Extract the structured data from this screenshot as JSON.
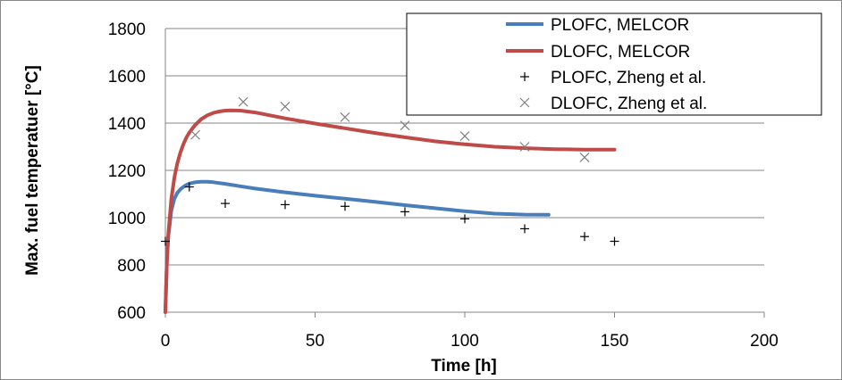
{
  "chart_data": {
    "type": "line",
    "title": "",
    "xlabel": "Time [h]",
    "ylabel": "Max. fuel temperatuer [°C]",
    "xlim": [
      0,
      200
    ],
    "ylim": [
      600,
      1800
    ],
    "xticks": [
      0,
      50,
      100,
      150,
      200
    ],
    "yticks": [
      600,
      800,
      1000,
      1200,
      1400,
      1600,
      1800
    ],
    "grid": "horizontal",
    "legend_position": "top-right",
    "series": [
      {
        "name": "PLOFC, MELCOR",
        "style": "line",
        "color": "#4a7ebb",
        "x": [
          0,
          0.5,
          1,
          2,
          3,
          4,
          5,
          6,
          7,
          8,
          10,
          12,
          14,
          16,
          20,
          25,
          30,
          40,
          50,
          60,
          70,
          80,
          90,
          100,
          110,
          120,
          128
        ],
        "y": [
          600,
          820,
          920,
          1030,
          1080,
          1105,
          1120,
          1130,
          1138,
          1144,
          1150,
          1152,
          1152,
          1150,
          1143,
          1133,
          1123,
          1107,
          1093,
          1080,
          1067,
          1053,
          1040,
          1027,
          1017,
          1013,
          1012
        ]
      },
      {
        "name": "DLOFC, MELCOR",
        "style": "line",
        "color": "#be4b48",
        "x": [
          0,
          0.5,
          1,
          2,
          3,
          4,
          5,
          6,
          7,
          8,
          10,
          12,
          14,
          16,
          18,
          20,
          22,
          25,
          30,
          40,
          50,
          60,
          70,
          80,
          90,
          100,
          110,
          120,
          130,
          140,
          150
        ],
        "y": [
          600,
          810,
          930,
          1080,
          1170,
          1230,
          1275,
          1310,
          1338,
          1360,
          1393,
          1417,
          1433,
          1443,
          1449,
          1453,
          1454,
          1453,
          1445,
          1420,
          1398,
          1378,
          1358,
          1340,
          1323,
          1310,
          1300,
          1294,
          1290,
          1288,
          1288
        ]
      },
      {
        "name": "PLOFC, Zheng et al.",
        "style": "marker-plus",
        "color": "#000000",
        "x": [
          0,
          8,
          20,
          40,
          60,
          80,
          100,
          120,
          140,
          150
        ],
        "y": [
          900,
          1130,
          1060,
          1055,
          1048,
          1025,
          995,
          953,
          920,
          900
        ]
      },
      {
        "name": "DLOFC, Zheng et al.",
        "style": "marker-x",
        "color": "#7f7f7f",
        "x": [
          10,
          26,
          40,
          60,
          80,
          100,
          120,
          140
        ],
        "y": [
          1350,
          1490,
          1470,
          1425,
          1390,
          1345,
          1300,
          1255
        ]
      }
    ]
  }
}
